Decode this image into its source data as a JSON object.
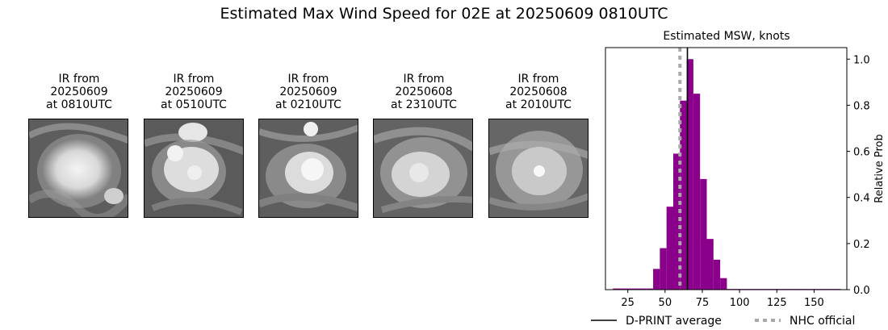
{
  "suptitle": "Estimated Max Wind Speed for 02E at 20250609 0810UTC",
  "ir_panels": [
    {
      "line1": "IR from",
      "line2": "20250609",
      "line3": "at 0810UTC"
    },
    {
      "line1": "IR from",
      "line2": "20250609",
      "line3": "at 0510UTC"
    },
    {
      "line1": "IR from",
      "line2": "20250609",
      "line3": "at 0210UTC"
    },
    {
      "line1": "IR from",
      "line2": "20250608",
      "line3": "at 2310UTC"
    },
    {
      "line1": "IR from",
      "line2": "20250608",
      "line3": "at 2010UTC"
    }
  ],
  "chart_data": {
    "type": "bar",
    "title": "Estimated MSW, knots",
    "xlabel": "",
    "ylabel": "Relative Prob",
    "xlim": [
      10,
      172
    ],
    "ylim": [
      0,
      1.05
    ],
    "xticks": [
      25,
      50,
      75,
      100,
      125,
      150
    ],
    "yticks": [
      0.0,
      0.2,
      0.4,
      0.6,
      0.8,
      1.0
    ],
    "y_axis_side": "right",
    "bin_width": 4.5,
    "bins": [
      {
        "x0": 15,
        "value": 0.005
      },
      {
        "x0": 19.5,
        "value": 0.005
      },
      {
        "x0": 24,
        "value": 0.005
      },
      {
        "x0": 28.5,
        "value": 0.005
      },
      {
        "x0": 33,
        "value": 0.005
      },
      {
        "x0": 37.5,
        "value": 0.005
      },
      {
        "x0": 42,
        "value": 0.09
      },
      {
        "x0": 46.5,
        "value": 0.18
      },
      {
        "x0": 51,
        "value": 0.36
      },
      {
        "x0": 55.5,
        "value": 0.59
      },
      {
        "x0": 60,
        "value": 0.82
      },
      {
        "x0": 64.5,
        "value": 1.0
      },
      {
        "x0": 69,
        "value": 0.85
      },
      {
        "x0": 73.5,
        "value": 0.48
      },
      {
        "x0": 78,
        "value": 0.22
      },
      {
        "x0": 82.5,
        "value": 0.13
      },
      {
        "x0": 87,
        "value": 0.05
      },
      {
        "x0": 91.5,
        "value": 0.003
      },
      {
        "x0": 96,
        "value": 0.003
      },
      {
        "x0": 100.5,
        "value": 0.003
      },
      {
        "x0": 105,
        "value": 0.003
      },
      {
        "x0": 109.5,
        "value": 0.003
      },
      {
        "x0": 114,
        "value": 0.003
      },
      {
        "x0": 118.5,
        "value": 0.003
      },
      {
        "x0": 123,
        "value": 0.003
      },
      {
        "x0": 127.5,
        "value": 0.003
      },
      {
        "x0": 132,
        "value": 0.003
      },
      {
        "x0": 136.5,
        "value": 0.003
      },
      {
        "x0": 141,
        "value": 0.003
      },
      {
        "x0": 145.5,
        "value": 0.003
      },
      {
        "x0": 150,
        "value": 0.003
      },
      {
        "x0": 154.5,
        "value": 0.003
      },
      {
        "x0": 159,
        "value": 0.003
      },
      {
        "x0": 163.5,
        "value": 0.003
      }
    ],
    "bar_color": "#8b008b",
    "dprint_average": 65,
    "nhc_official": 60,
    "dprint_color": "#000000",
    "nhc_color": "#a9a9a9",
    "legend": {
      "placement": "bottom",
      "dprint_label": "D-PRINT average",
      "nhc_label": "NHC official"
    }
  }
}
